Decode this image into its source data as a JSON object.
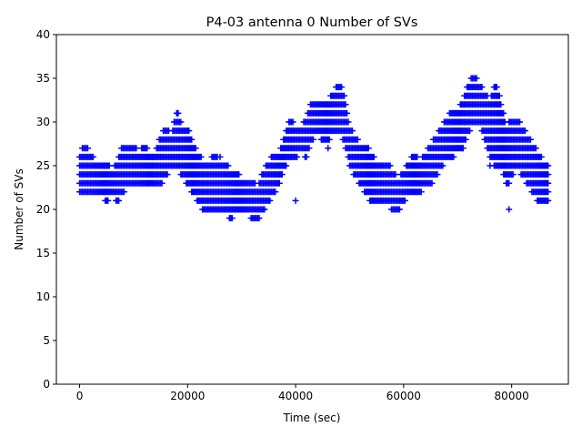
{
  "chart_data": {
    "type": "scatter",
    "title": "P4-03 antenna 0 Number of SVs",
    "xlabel": "Time (sec)",
    "ylabel": "Number of SVs",
    "xlim": [
      -4300,
      90500
    ],
    "ylim": [
      0,
      40
    ],
    "xticks": [
      0,
      20000,
      40000,
      60000,
      80000
    ],
    "xtick_labels": [
      "0",
      "20000",
      "40000",
      "60000",
      "80000"
    ],
    "yticks": [
      0,
      5,
      10,
      15,
      20,
      25,
      30,
      35,
      40
    ],
    "ytick_labels": [
      "0",
      "5",
      "10",
      "15",
      "20",
      "25",
      "30",
      "35",
      "40"
    ],
    "grid": false,
    "legend": "none",
    "marker": "+",
    "color": "#0000ff",
    "ranges": [
      [
        0,
        22,
        26
      ],
      [
        1000,
        22,
        27
      ],
      [
        2000,
        22,
        26
      ],
      [
        3000,
        22,
        25
      ],
      [
        4000,
        22,
        25
      ],
      [
        5000,
        21,
        25
      ],
      [
        6000,
        22,
        24
      ],
      [
        7000,
        21,
        25
      ],
      [
        8000,
        22,
        27
      ],
      [
        9000,
        23,
        27
      ],
      [
        10000,
        23,
        27
      ],
      [
        11000,
        23,
        26
      ],
      [
        12000,
        23,
        27
      ],
      [
        13000,
        23,
        26
      ],
      [
        14000,
        23,
        26
      ],
      [
        15000,
        23,
        28
      ],
      [
        16000,
        24,
        29
      ],
      [
        17000,
        25,
        28
      ],
      [
        18000,
        25,
        31
      ],
      [
        19000,
        24,
        29
      ],
      [
        20000,
        23,
        29
      ],
      [
        21000,
        22,
        27
      ],
      [
        22000,
        21,
        26
      ],
      [
        23000,
        20,
        25
      ],
      [
        24000,
        20,
        25
      ],
      [
        25000,
        20,
        26
      ],
      [
        26000,
        20,
        25
      ],
      [
        27000,
        20,
        25
      ],
      [
        28000,
        19,
        24
      ],
      [
        29000,
        20,
        24
      ],
      [
        30000,
        20,
        23
      ],
      [
        31000,
        20,
        23
      ],
      [
        32000,
        19,
        23
      ],
      [
        33000,
        19,
        22
      ],
      [
        34000,
        20,
        24
      ],
      [
        35000,
        21,
        25
      ],
      [
        36000,
        22,
        26
      ],
      [
        37000,
        23,
        26
      ],
      [
        38000,
        25,
        28
      ],
      [
        39000,
        26,
        30
      ],
      [
        40000,
        26,
        29
      ],
      [
        41000,
        27,
        29
      ],
      [
        42000,
        26,
        30
      ],
      [
        43000,
        28,
        32
      ],
      [
        44000,
        29,
        32
      ],
      [
        45000,
        28,
        32
      ],
      [
        46000,
        28,
        32
      ],
      [
        47000,
        29,
        33
      ],
      [
        48000,
        29,
        34
      ],
      [
        49000,
        28,
        33
      ],
      [
        50000,
        25,
        29
      ],
      [
        51000,
        24,
        28
      ],
      [
        52000,
        23,
        27
      ],
      [
        53000,
        22,
        27
      ],
      [
        54000,
        21,
        26
      ],
      [
        55000,
        21,
        25
      ],
      [
        56000,
        21,
        25
      ],
      [
        57000,
        21,
        25
      ],
      [
        58000,
        20,
        24
      ],
      [
        59000,
        20,
        23
      ],
      [
        60000,
        21,
        24
      ],
      [
        61000,
        22,
        25
      ],
      [
        62000,
        22,
        26
      ],
      [
        63000,
        22,
        25
      ],
      [
        64000,
        23,
        26
      ],
      [
        65000,
        23,
        27
      ],
      [
        66000,
        24,
        28
      ],
      [
        67000,
        25,
        29
      ],
      [
        68000,
        26,
        30
      ],
      [
        69000,
        26,
        31
      ],
      [
        70000,
        27,
        31
      ],
      [
        71000,
        27,
        32
      ],
      [
        72000,
        29,
        34
      ],
      [
        73000,
        30,
        35
      ],
      [
        74000,
        30,
        34
      ],
      [
        75000,
        28,
        33
      ],
      [
        76000,
        26,
        32
      ],
      [
        77000,
        25,
        34
      ],
      [
        78000,
        25,
        32
      ],
      [
        79000,
        23,
        29
      ],
      [
        80000,
        24,
        30
      ],
      [
        81000,
        25,
        30
      ],
      [
        82000,
        24,
        29
      ],
      [
        83000,
        23,
        28
      ],
      [
        84000,
        22,
        27
      ],
      [
        85000,
        21,
        26
      ],
      [
        86000,
        21,
        25
      ]
    ],
    "outliers": [
      [
        40000,
        21
      ],
      [
        46000,
        27
      ],
      [
        76000,
        25
      ],
      [
        79500,
        20
      ],
      [
        79500,
        23
      ],
      [
        77000,
        34
      ],
      [
        18000,
        31
      ],
      [
        71000,
        27
      ],
      [
        26000,
        26
      ]
    ]
  }
}
